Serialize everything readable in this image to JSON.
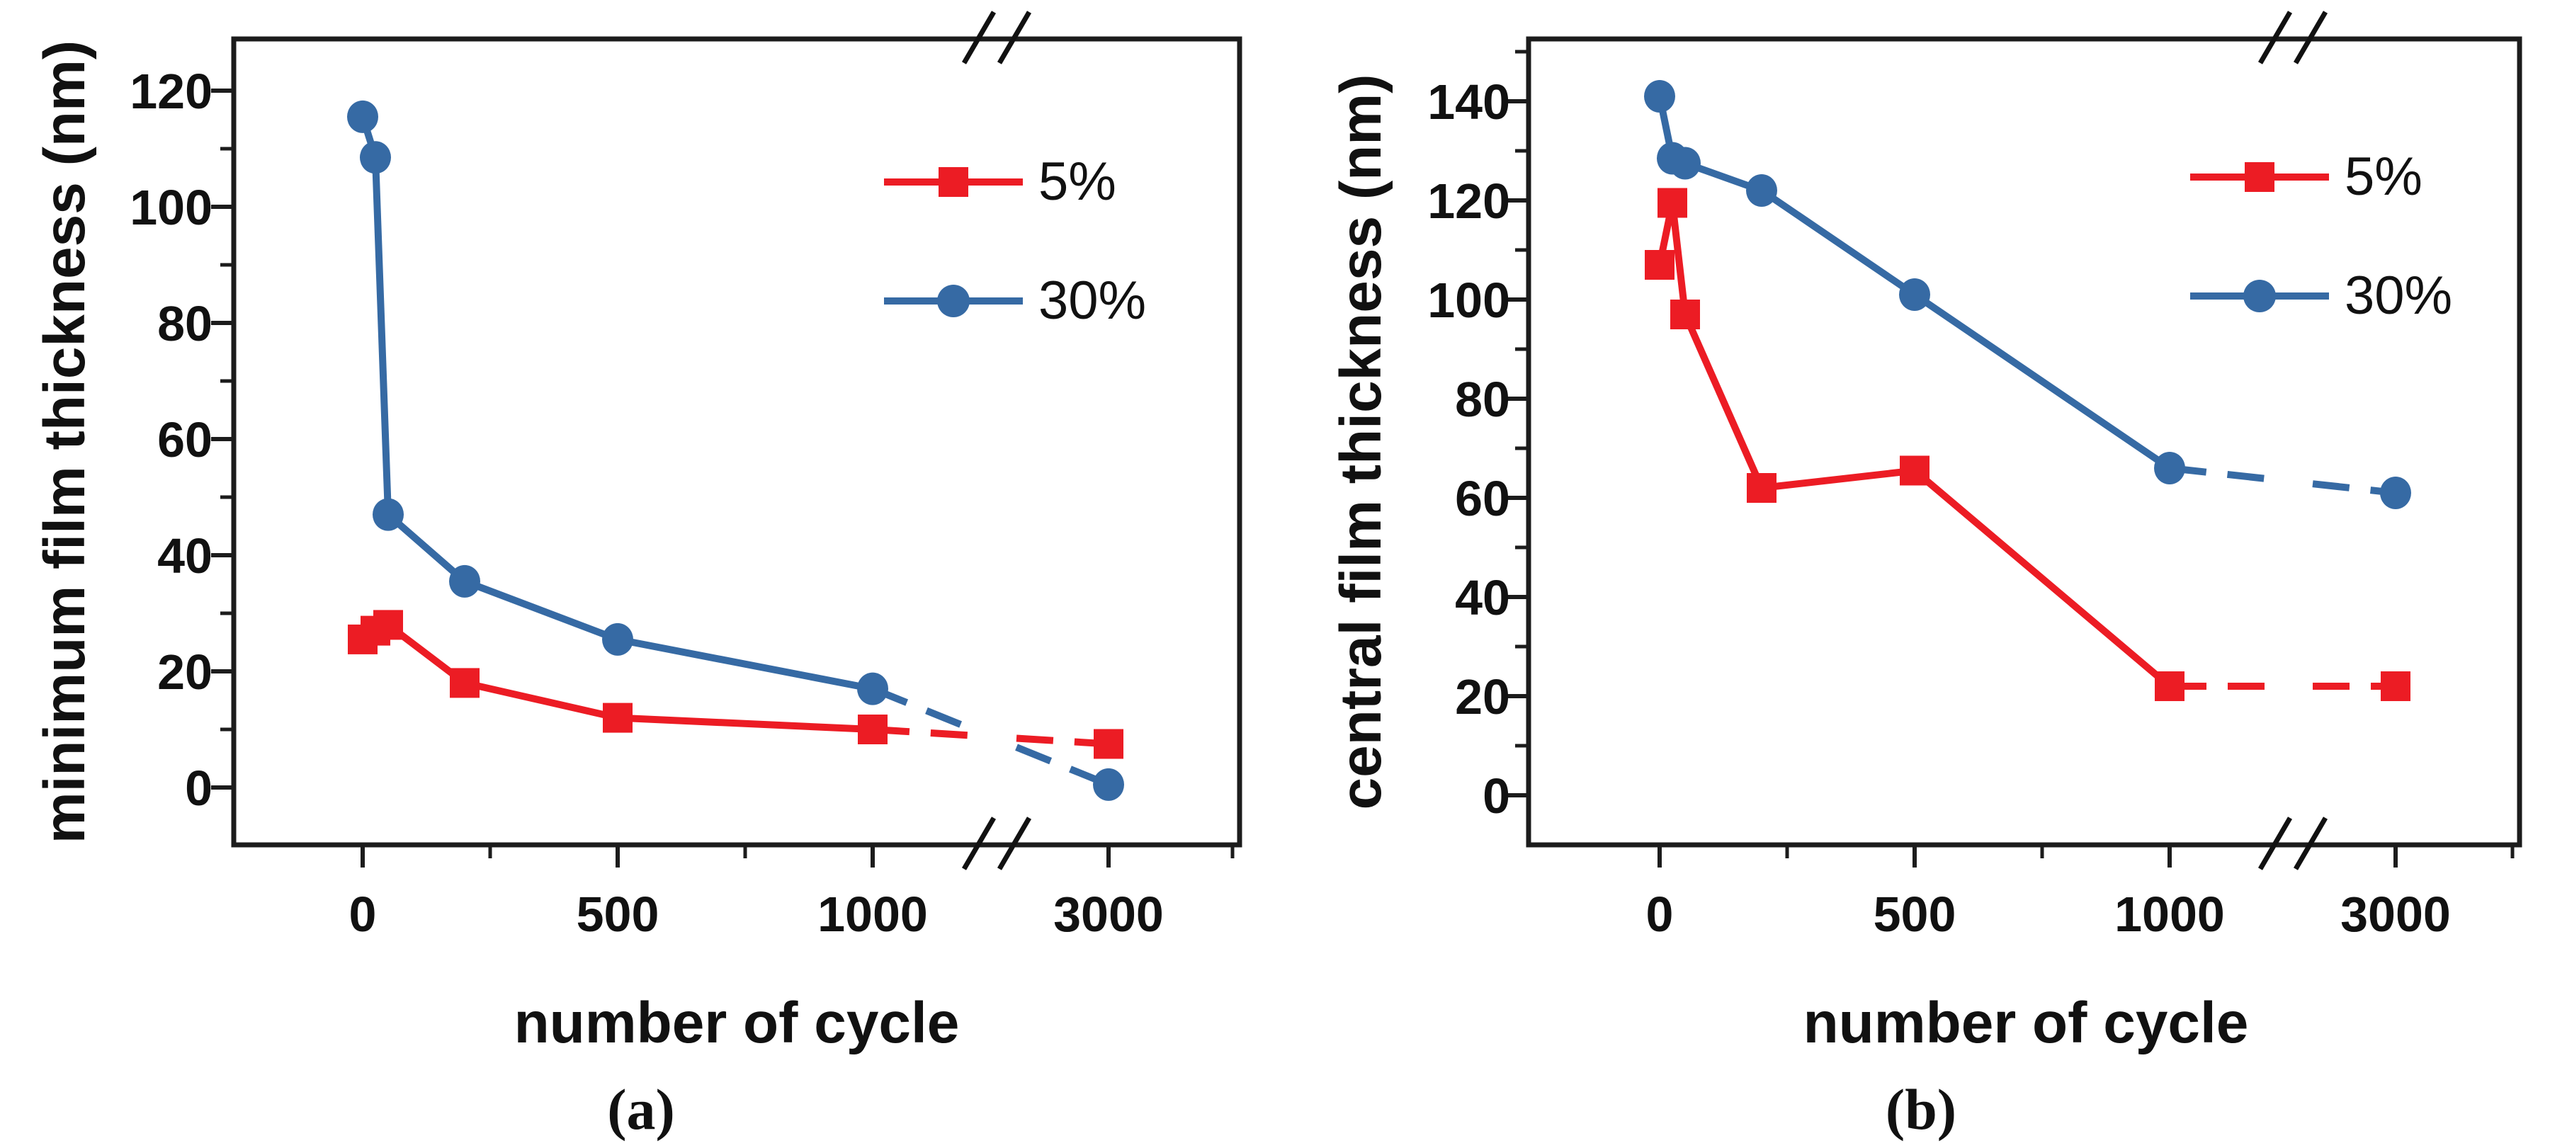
{
  "figure": {
    "background": "#ffffff",
    "accent_red": "#ec1c24",
    "accent_blue": "#366aa4",
    "axis_color": "#1c1c1c"
  },
  "chart_data": [
    {
      "type": "line",
      "panel": "a",
      "caption": "(a)",
      "xlabel": "number of cycle",
      "ylabel": "minimum film thickness (nm)",
      "x_ticks": [
        0,
        500,
        1000,
        3000
      ],
      "x_minor_ticks": [
        250,
        750,
        3250
      ],
      "x_break_between": [
        1000,
        3000
      ],
      "y_ticks": [
        0,
        20,
        40,
        60,
        80,
        100,
        120
      ],
      "y_minor_ticks": [
        10,
        30,
        50,
        70,
        90,
        110
      ],
      "ylim": [
        -10,
        129
      ],
      "grid": "off",
      "legend_position": "top-right",
      "series": [
        {
          "name": "5%",
          "marker": "square",
          "color": "#ec1c24",
          "points": [
            [
              0,
              25.5
            ],
            [
              25,
              27
            ],
            [
              50,
              28
            ],
            [
              200,
              18
            ],
            [
              500,
              12
            ],
            [
              1000,
              10
            ],
            [
              3000,
              7.5
            ]
          ]
        },
        {
          "name": "30%",
          "marker": "circle",
          "color": "#366aa4",
          "points": [
            [
              0,
              115.5
            ],
            [
              25,
              108.5
            ],
            [
              50,
              47
            ],
            [
              200,
              35.5
            ],
            [
              500,
              25.5
            ],
            [
              1000,
              17
            ],
            [
              3000,
              0.5
            ]
          ]
        }
      ]
    },
    {
      "type": "line",
      "panel": "b",
      "caption": "(b)",
      "xlabel": "number of cycle",
      "ylabel": "central film thickness (nm)",
      "x_ticks": [
        0,
        500,
        1000,
        3000
      ],
      "x_minor_ticks": [
        250,
        750,
        3250
      ],
      "x_break_between": [
        1000,
        3000
      ],
      "y_ticks": [
        0,
        20,
        40,
        60,
        80,
        100,
        120,
        140
      ],
      "y_minor_ticks": [
        10,
        30,
        50,
        70,
        90,
        110,
        130,
        150
      ],
      "ylim": [
        -10,
        153
      ],
      "grid": "off",
      "legend_position": "top-right",
      "series": [
        {
          "name": "5%",
          "marker": "square",
          "color": "#ec1c24",
          "points": [
            [
              0,
              107
            ],
            [
              25,
              119.5
            ],
            [
              50,
              97
            ],
            [
              200,
              62
            ],
            [
              500,
              65.5
            ],
            [
              1000,
              22
            ],
            [
              3000,
              22
            ]
          ]
        },
        {
          "name": "30%",
          "marker": "circle",
          "color": "#366aa4",
          "points": [
            [
              0,
              141
            ],
            [
              25,
              128.5
            ],
            [
              50,
              127.5
            ],
            [
              200,
              122
            ],
            [
              500,
              101
            ],
            [
              1000,
              66
            ],
            [
              3000,
              61
            ]
          ]
        }
      ]
    }
  ]
}
